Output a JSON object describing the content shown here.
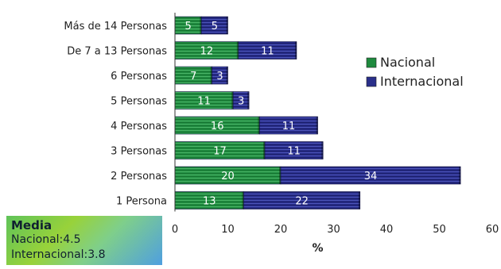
{
  "chart_data": {
    "type": "bar",
    "orientation": "horizontal",
    "stacked": true,
    "categories": [
      "Más de 14 Personas",
      "De 7 a 13 Personas",
      "6 Personas",
      "5 Personas",
      "4 Personas",
      "3 Personas",
      "2 Personas",
      "1 Persona"
    ],
    "series": [
      {
        "name": "Nacional",
        "color": "#1e8a3e",
        "values": [
          5,
          12,
          7,
          11,
          16,
          17,
          20,
          13
        ]
      },
      {
        "name": "Internacional",
        "color": "#2a2f8a",
        "values": [
          5,
          11,
          3,
          3,
          11,
          11,
          34,
          22
        ]
      }
    ],
    "xlabel": "%",
    "xlim": [
      0,
      60
    ],
    "xticks": [
      0,
      10,
      20,
      30,
      40,
      50,
      60
    ],
    "grid": false,
    "legend_position": "right"
  },
  "summary_box": {
    "title": "Media",
    "line1": "Nacional:4.5",
    "line2": "Internacional:3.8"
  }
}
